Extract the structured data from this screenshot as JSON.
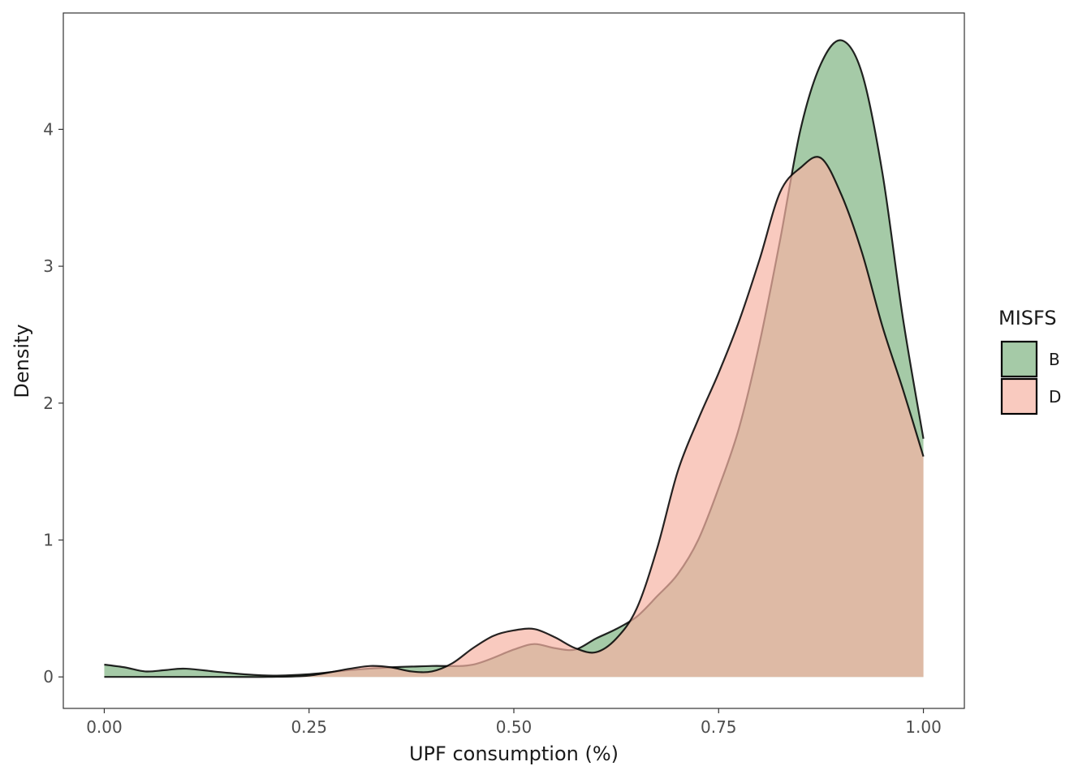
{
  "chart_data": {
    "type": "area",
    "subtype": "density",
    "title": "",
    "xlabel": "UPF consumption (%)",
    "ylabel": "Density",
    "xlim": [
      -0.05,
      1.05
    ],
    "ylim": [
      -0.23,
      4.85
    ],
    "x_ticks": [
      0.0,
      0.25,
      0.5,
      0.75,
      1.0
    ],
    "x_tick_labels": [
      "0.00",
      "0.25",
      "0.50",
      "0.75",
      "1.00"
    ],
    "y_ticks": [
      0,
      1,
      2,
      3,
      4
    ],
    "y_tick_labels": [
      "0",
      "1",
      "2",
      "3",
      "4"
    ],
    "grid": false,
    "legend": {
      "title": "MISFS",
      "position": "right"
    },
    "series": [
      {
        "name": "B",
        "color": "#7fb382",
        "x": [
          0.0,
          0.025,
          0.05,
          0.075,
          0.1,
          0.15,
          0.2,
          0.25,
          0.3,
          0.35,
          0.4,
          0.45,
          0.5,
          0.525,
          0.55,
          0.575,
          0.6,
          0.625,
          0.65,
          0.675,
          0.7,
          0.725,
          0.75,
          0.775,
          0.8,
          0.825,
          0.85,
          0.875,
          0.9,
          0.925,
          0.95,
          0.975,
          1.0
        ],
        "y": [
          0.09,
          0.07,
          0.04,
          0.05,
          0.06,
          0.03,
          0.01,
          0.02,
          0.05,
          0.07,
          0.08,
          0.09,
          0.2,
          0.24,
          0.21,
          0.2,
          0.28,
          0.35,
          0.44,
          0.59,
          0.75,
          1.0,
          1.38,
          1.82,
          2.44,
          3.19,
          4.0,
          4.48,
          4.65,
          4.41,
          3.68,
          2.62,
          1.74
        ]
      },
      {
        "name": "D",
        "color": "#f7b3a4",
        "x": [
          0.0,
          0.05,
          0.1,
          0.15,
          0.2,
          0.25,
          0.3,
          0.325,
          0.35,
          0.375,
          0.4,
          0.425,
          0.45,
          0.475,
          0.5,
          0.525,
          0.55,
          0.575,
          0.6,
          0.625,
          0.65,
          0.675,
          0.7,
          0.725,
          0.75,
          0.775,
          0.8,
          0.825,
          0.85,
          0.875,
          0.9,
          0.925,
          0.95,
          0.975,
          1.0
        ],
        "y": [
          0.0,
          0.0,
          0.0,
          0.0,
          0.0,
          0.01,
          0.06,
          0.08,
          0.07,
          0.04,
          0.04,
          0.1,
          0.21,
          0.3,
          0.34,
          0.35,
          0.29,
          0.21,
          0.18,
          0.28,
          0.5,
          0.94,
          1.5,
          1.88,
          2.22,
          2.6,
          3.05,
          3.54,
          3.72,
          3.79,
          3.52,
          3.1,
          2.56,
          2.1,
          1.61
        ]
      }
    ]
  }
}
